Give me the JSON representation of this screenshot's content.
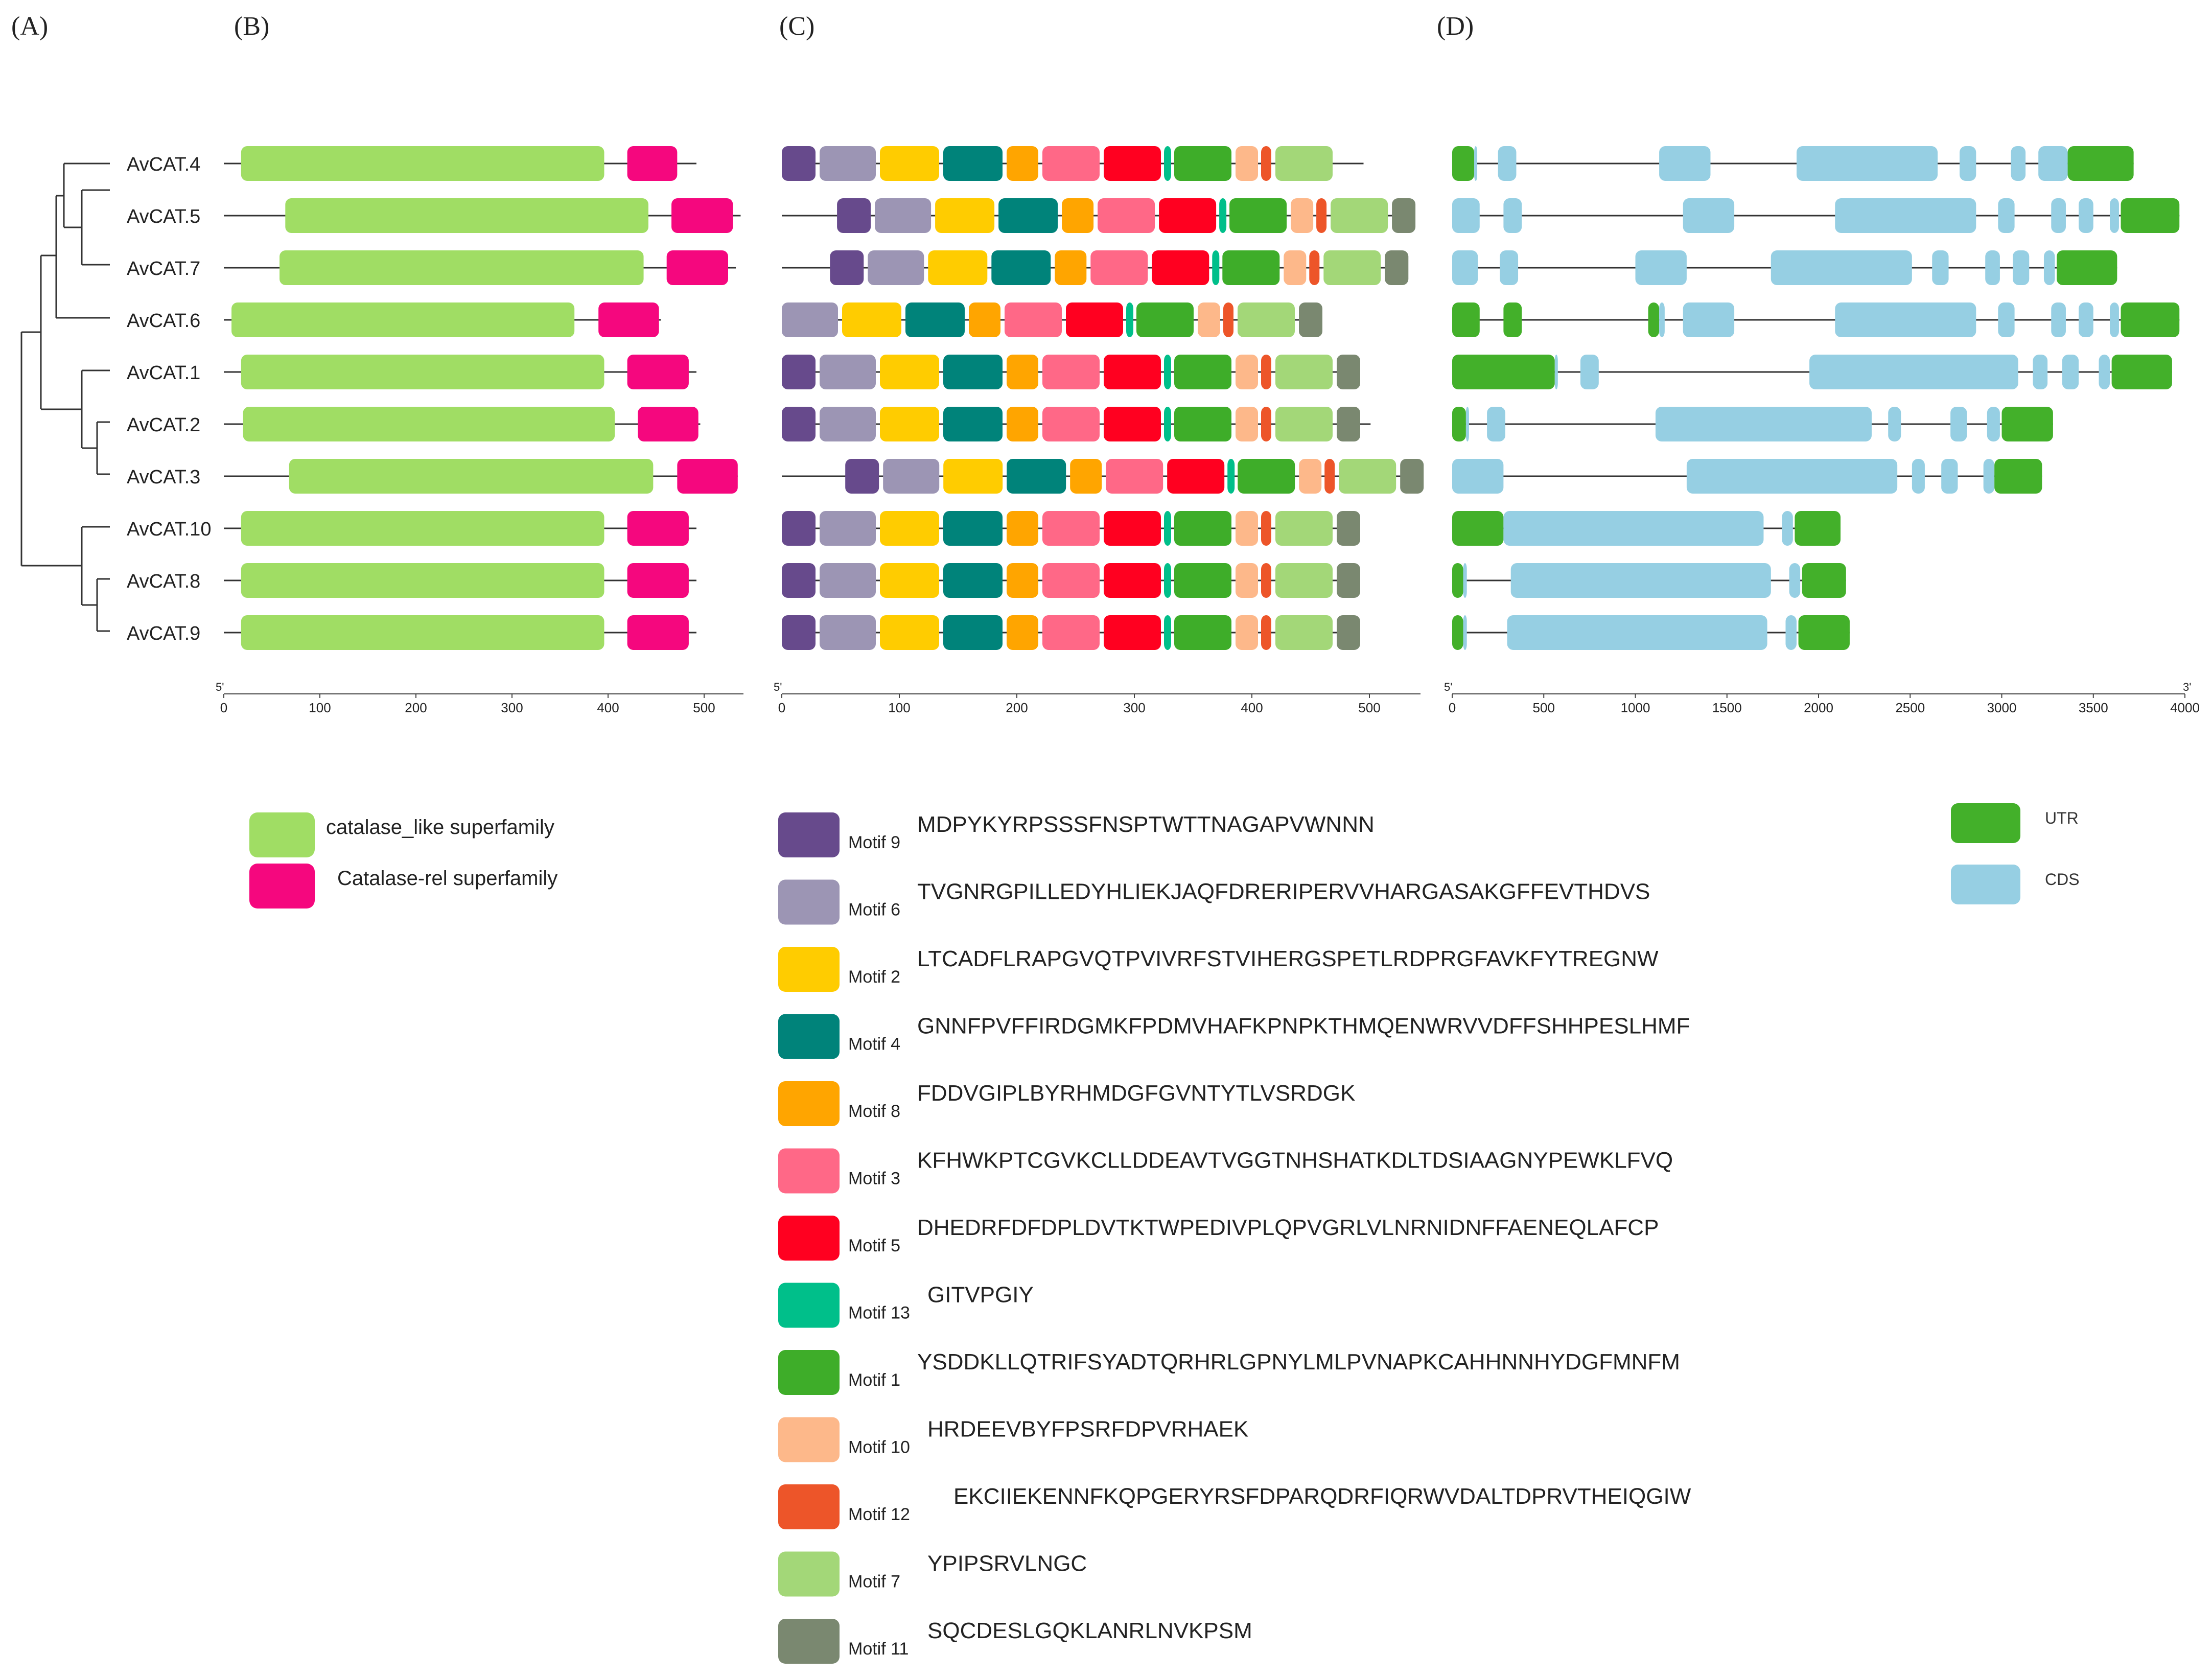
{
  "panels": {
    "A": "(A)",
    "B": "(B)",
    "C": "(C)",
    "D": "(D)"
  },
  "genes": [
    "AvCAT.4",
    "AvCAT.5",
    "AvCAT.7",
    "AvCAT.6",
    "AvCAT.1",
    "AvCAT.2",
    "AvCAT.3",
    "AvCAT.10",
    "AvCAT.8",
    "AvCAT.9"
  ],
  "colors": {
    "catalase_like": "#a0dd64",
    "catalase_rel": "#f5077e",
    "utr": "#43b02a",
    "cds": "#96cfe3",
    "line": "#333333"
  },
  "domain_panel": {
    "axis": {
      "start_label": "5'",
      "ticks": [
        0,
        100,
        200,
        300,
        400,
        500
      ]
    },
    "proteins": [
      {
        "gene": "AvCAT.4",
        "length": 492,
        "domains": [
          {
            "type": "catalase_like",
            "start": 18,
            "end": 396
          },
          {
            "type": "catalase_rel",
            "start": 420,
            "end": 472
          }
        ]
      },
      {
        "gene": "AvCAT.5",
        "length": 538,
        "domains": [
          {
            "type": "catalase_like",
            "start": 64,
            "end": 442
          },
          {
            "type": "catalase_rel",
            "start": 466,
            "end": 530
          }
        ]
      },
      {
        "gene": "AvCAT.7",
        "length": 533,
        "domains": [
          {
            "type": "catalase_like",
            "start": 58,
            "end": 437
          },
          {
            "type": "catalase_rel",
            "start": 461,
            "end": 525
          }
        ]
      },
      {
        "gene": "AvCAT.6",
        "length": 455,
        "domains": [
          {
            "type": "catalase_like",
            "start": 8,
            "end": 365
          },
          {
            "type": "catalase_rel",
            "start": 390,
            "end": 453
          }
        ]
      },
      {
        "gene": "AvCAT.1",
        "length": 492,
        "domains": [
          {
            "type": "catalase_like",
            "start": 18,
            "end": 396
          },
          {
            "type": "catalase_rel",
            "start": 420,
            "end": 484
          }
        ]
      },
      {
        "gene": "AvCAT.2",
        "length": 496,
        "domains": [
          {
            "type": "catalase_like",
            "start": 20,
            "end": 407
          },
          {
            "type": "catalase_rel",
            "start": 431,
            "end": 494
          }
        ]
      },
      {
        "gene": "AvCAT.3",
        "length": 535,
        "domains": [
          {
            "type": "catalase_like",
            "start": 68,
            "end": 447
          },
          {
            "type": "catalase_rel",
            "start": 472,
            "end": 535
          }
        ]
      },
      {
        "gene": "AvCAT.10",
        "length": 492,
        "domains": [
          {
            "type": "catalase_like",
            "start": 18,
            "end": 396
          },
          {
            "type": "catalase_rel",
            "start": 420,
            "end": 484
          }
        ]
      },
      {
        "gene": "AvCAT.8",
        "length": 492,
        "domains": [
          {
            "type": "catalase_like",
            "start": 18,
            "end": 396
          },
          {
            "type": "catalase_rel",
            "start": 420,
            "end": 484
          }
        ]
      },
      {
        "gene": "AvCAT.9",
        "length": 492,
        "domains": [
          {
            "type": "catalase_like",
            "start": 18,
            "end": 396
          },
          {
            "type": "catalase_rel",
            "start": 420,
            "end": 484
          }
        ]
      }
    ],
    "legend": [
      {
        "type": "catalase_like",
        "label": "catalase_like superfamily"
      },
      {
        "type": "catalase_rel",
        "label": "Catalase-rel superfamily"
      }
    ]
  },
  "motif_panel": {
    "axis": {
      "start_label": "5'",
      "ticks": [
        0,
        100,
        200,
        300,
        400,
        500
      ]
    },
    "motif_colors": {
      "9": "#674a8c",
      "6": "#9c95b4",
      "2": "#ffcc00",
      "4": "#00837a",
      "8": "#ffa500",
      "3": "#ff6887",
      "5": "#ff0020",
      "13": "#00bf8a",
      "1": "#3ead29",
      "10": "#fdb88a",
      "12": "#ed5529",
      "7": "#a3d778",
      "11": "#7a8870"
    },
    "motifs": [
      {
        "id": "9",
        "name": "Motif 9",
        "sequence": "MDPYKYRPSSSFNSPTWTTNAGAPVWNNN"
      },
      {
        "id": "6",
        "name": "Motif 6",
        "sequence": "TVGNRGPILLEDYHLIEKJAQFDRERIPERVVHARGASAKGFFEVTHDVS"
      },
      {
        "id": "2",
        "name": "Motif 2",
        "sequence": "LTCADFLRAPGVQTPVIVRFSTVIHERGSPETLRDPRGFAVKFYTREGNW"
      },
      {
        "id": "4",
        "name": "Motif 4",
        "sequence": "GNNFPVFFIRDGMKFPDMVHAFKPNPKTHMQENWRVVDFFSHHPESLHMF"
      },
      {
        "id": "8",
        "name": "Motif 8",
        "sequence": "FDDVGIPLBYRHMDGFGVNTYTLVSRDGK"
      },
      {
        "id": "3",
        "name": "Motif 3",
        "sequence": "KFHWKPTCGVKCLLDDEAVTVGGTNHSHATKDLTDSIAAGNYPEWKLFVQ"
      },
      {
        "id": "5",
        "name": "Motif 5",
        "sequence": "DHEDRFDFDPLDVTKTWPEDIVPLQPVGRLVLNRNIDNFFAENEQLAFCP"
      },
      {
        "id": "13",
        "name": "Motif 13",
        "sequence": "GITVPGIY"
      },
      {
        "id": "1",
        "name": "Motif 1",
        "sequence": "YSDDKLLQTRIFSYADTQRHRLGPNYLMLPVNAPKCAHHNNHYDGFMNFM"
      },
      {
        "id": "10",
        "name": "Motif 10",
        "sequence": "HRDEEVBYFPSRFDPVRHAEK"
      },
      {
        "id": "12",
        "name": "Motif 12",
        "sequence": "EKCIIEKENNFKQPGERYRSFDPARQDRFIQRWVDALTDPRVTHEIQGIW"
      },
      {
        "id": "7",
        "name": "Motif 7",
        "sequence": "YPIPSRVLNGC"
      },
      {
        "id": "11",
        "name": "Motif 11",
        "sequence": "SQCDESLGQKLANRLNVKPSM"
      }
    ],
    "proteins": [
      {
        "gene": "AvCAT.4",
        "length": 495,
        "offset": 0,
        "order": [
          "9",
          "6",
          "2",
          "4",
          "8",
          "3",
          "5",
          "13",
          "1",
          "10",
          "12",
          "7"
        ]
      },
      {
        "gene": "AvCAT.5",
        "length": 538,
        "offset": 47,
        "order": [
          "9",
          "6",
          "2",
          "4",
          "8",
          "3",
          "5",
          "13",
          "1",
          "10",
          "12",
          "7",
          "11"
        ]
      },
      {
        "gene": "AvCAT.7",
        "length": 533,
        "offset": 41,
        "order": [
          "9",
          "6",
          "2",
          "4",
          "8",
          "3",
          "5",
          "13",
          "1",
          "10",
          "12",
          "7",
          "11"
        ]
      },
      {
        "gene": "AvCAT.6",
        "length": 458,
        "offset": 0,
        "order": [
          "6",
          "2",
          "4",
          "8",
          "3",
          "5",
          "13",
          "1",
          "10",
          "12",
          "7",
          "11"
        ]
      },
      {
        "gene": "AvCAT.1",
        "length": 492,
        "offset": 0,
        "order": [
          "9",
          "6",
          "2",
          "4",
          "8",
          "3",
          "5",
          "13",
          "1",
          "10",
          "12",
          "7",
          "11"
        ]
      },
      {
        "gene": "AvCAT.2",
        "length": 501,
        "offset": 0,
        "order": [
          "9",
          "6",
          "2",
          "4",
          "8",
          "3",
          "5",
          "13",
          "1",
          "10",
          "12",
          "7",
          "11"
        ]
      },
      {
        "gene": "AvCAT.3",
        "length": 546,
        "offset": 54,
        "order": [
          "9",
          "6",
          "2",
          "4",
          "8",
          "3",
          "5",
          "13",
          "1",
          "10",
          "12",
          "7",
          "11"
        ]
      },
      {
        "gene": "AvCAT.10",
        "length": 492,
        "offset": 0,
        "order": [
          "9",
          "6",
          "2",
          "4",
          "8",
          "3",
          "5",
          "13",
          "1",
          "10",
          "12",
          "7",
          "11"
        ]
      },
      {
        "gene": "AvCAT.8",
        "length": 492,
        "offset": 0,
        "order": [
          "9",
          "6",
          "2",
          "4",
          "8",
          "3",
          "5",
          "13",
          "1",
          "10",
          "12",
          "7",
          "11"
        ]
      },
      {
        "gene": "AvCAT.9",
        "length": 492,
        "offset": 0,
        "order": [
          "9",
          "6",
          "2",
          "4",
          "8",
          "3",
          "5",
          "13",
          "1",
          "10",
          "12",
          "7",
          "11"
        ]
      }
    ]
  },
  "gene_panel": {
    "axis": {
      "start_label": "5'",
      "end_label": "3'",
      "ticks": [
        0,
        500,
        1000,
        1500,
        2000,
        2500,
        3000,
        3500,
        4000
      ]
    },
    "legend": [
      {
        "type": "utr",
        "label": "UTR"
      },
      {
        "type": "cds",
        "label": "CDS"
      }
    ],
    "genes": [
      {
        "gene": "AvCAT.4",
        "length": 3720,
        "features": [
          {
            "type": "utr",
            "start": 0,
            "end": 120
          },
          {
            "type": "cds",
            "start": 120,
            "end": 135
          },
          {
            "type": "cds",
            "start": 250,
            "end": 350
          },
          {
            "type": "cds",
            "start": 1130,
            "end": 1410
          },
          {
            "type": "cds",
            "start": 1880,
            "end": 2650
          },
          {
            "type": "cds",
            "start": 2770,
            "end": 2860
          },
          {
            "type": "cds",
            "start": 3050,
            "end": 3130
          },
          {
            "type": "cds",
            "start": 3200,
            "end": 3360
          },
          {
            "type": "utr",
            "start": 3360,
            "end": 3720
          }
        ]
      },
      {
        "gene": "AvCAT.5",
        "length": 3970,
        "features": [
          {
            "type": "cds",
            "start": 0,
            "end": 150
          },
          {
            "type": "cds",
            "start": 280,
            "end": 380
          },
          {
            "type": "cds",
            "start": 1260,
            "end": 1540
          },
          {
            "type": "cds",
            "start": 2090,
            "end": 2860
          },
          {
            "type": "cds",
            "start": 2980,
            "end": 3070
          },
          {
            "type": "cds",
            "start": 3270,
            "end": 3350
          },
          {
            "type": "cds",
            "start": 3420,
            "end": 3500
          },
          {
            "type": "cds",
            "start": 3590,
            "end": 3640
          },
          {
            "type": "utr",
            "start": 3650,
            "end": 3970
          }
        ]
      },
      {
        "gene": "AvCAT.7",
        "length": 3630,
        "features": [
          {
            "type": "cds",
            "start": 0,
            "end": 140
          },
          {
            "type": "cds",
            "start": 260,
            "end": 360
          },
          {
            "type": "cds",
            "start": 1000,
            "end": 1280
          },
          {
            "type": "cds",
            "start": 1740,
            "end": 2510
          },
          {
            "type": "cds",
            "start": 2620,
            "end": 2710
          },
          {
            "type": "cds",
            "start": 2910,
            "end": 2990
          },
          {
            "type": "cds",
            "start": 3060,
            "end": 3150
          },
          {
            "type": "cds",
            "start": 3230,
            "end": 3290
          },
          {
            "type": "utr",
            "start": 3300,
            "end": 3630
          }
        ]
      },
      {
        "gene": "AvCAT.6",
        "length": 3970,
        "features": [
          {
            "type": "utr",
            "start": 0,
            "end": 150
          },
          {
            "type": "utr",
            "start": 280,
            "end": 380
          },
          {
            "type": "utr",
            "start": 1070,
            "end": 1130
          },
          {
            "type": "cds",
            "start": 1130,
            "end": 1160
          },
          {
            "type": "cds",
            "start": 1260,
            "end": 1540
          },
          {
            "type": "cds",
            "start": 2090,
            "end": 2860
          },
          {
            "type": "cds",
            "start": 2980,
            "end": 3070
          },
          {
            "type": "cds",
            "start": 3270,
            "end": 3350
          },
          {
            "type": "cds",
            "start": 3420,
            "end": 3500
          },
          {
            "type": "cds",
            "start": 3590,
            "end": 3640
          },
          {
            "type": "utr",
            "start": 3650,
            "end": 3970
          }
        ]
      },
      {
        "gene": "AvCAT.1",
        "length": 3930,
        "features": [
          {
            "type": "utr",
            "start": 0,
            "end": 560
          },
          {
            "type": "cds",
            "start": 560,
            "end": 575
          },
          {
            "type": "cds",
            "start": 700,
            "end": 800
          },
          {
            "type": "cds",
            "start": 1950,
            "end": 3090
          },
          {
            "type": "cds",
            "start": 3170,
            "end": 3250
          },
          {
            "type": "cds",
            "start": 3330,
            "end": 3420
          },
          {
            "type": "cds",
            "start": 3530,
            "end": 3590
          },
          {
            "type": "utr",
            "start": 3600,
            "end": 3930
          }
        ]
      },
      {
        "gene": "AvCAT.2",
        "length": 3280,
        "features": [
          {
            "type": "utr",
            "start": 0,
            "end": 75
          },
          {
            "type": "cds",
            "start": 75,
            "end": 90
          },
          {
            "type": "cds",
            "start": 190,
            "end": 290
          },
          {
            "type": "cds",
            "start": 1110,
            "end": 2290
          },
          {
            "type": "cds",
            "start": 2380,
            "end": 2450
          },
          {
            "type": "cds",
            "start": 2720,
            "end": 2810
          },
          {
            "type": "cds",
            "start": 2920,
            "end": 2990
          },
          {
            "type": "utr",
            "start": 3000,
            "end": 3280
          }
        ]
      },
      {
        "gene": "AvCAT.3",
        "length": 3220,
        "features": [
          {
            "type": "cds",
            "start": 0,
            "end": 280
          },
          {
            "type": "cds",
            "start": 1280,
            "end": 2430
          },
          {
            "type": "cds",
            "start": 2510,
            "end": 2580
          },
          {
            "type": "cds",
            "start": 2670,
            "end": 2760
          },
          {
            "type": "cds",
            "start": 2900,
            "end": 2960
          },
          {
            "type": "utr",
            "start": 2960,
            "end": 3220
          }
        ]
      },
      {
        "gene": "AvCAT.10",
        "length": 2120,
        "features": [
          {
            "type": "utr",
            "start": 0,
            "end": 280
          },
          {
            "type": "cds",
            "start": 280,
            "end": 1700
          },
          {
            "type": "cds",
            "start": 1800,
            "end": 1860
          },
          {
            "type": "utr",
            "start": 1870,
            "end": 2120
          }
        ]
      },
      {
        "gene": "AvCAT.8",
        "length": 2150,
        "features": [
          {
            "type": "utr",
            "start": 0,
            "end": 60
          },
          {
            "type": "cds",
            "start": 60,
            "end": 80
          },
          {
            "type": "cds",
            "start": 320,
            "end": 1740
          },
          {
            "type": "cds",
            "start": 1840,
            "end": 1900
          },
          {
            "type": "utr",
            "start": 1910,
            "end": 2150
          }
        ]
      },
      {
        "gene": "AvCAT.9",
        "length": 2170,
        "features": [
          {
            "type": "utr",
            "start": 0,
            "end": 60
          },
          {
            "type": "cds",
            "start": 60,
            "end": 80
          },
          {
            "type": "cds",
            "start": 300,
            "end": 1720
          },
          {
            "type": "cds",
            "start": 1820,
            "end": 1880
          },
          {
            "type": "utr",
            "start": 1890,
            "end": 2170
          }
        ]
      }
    ]
  }
}
